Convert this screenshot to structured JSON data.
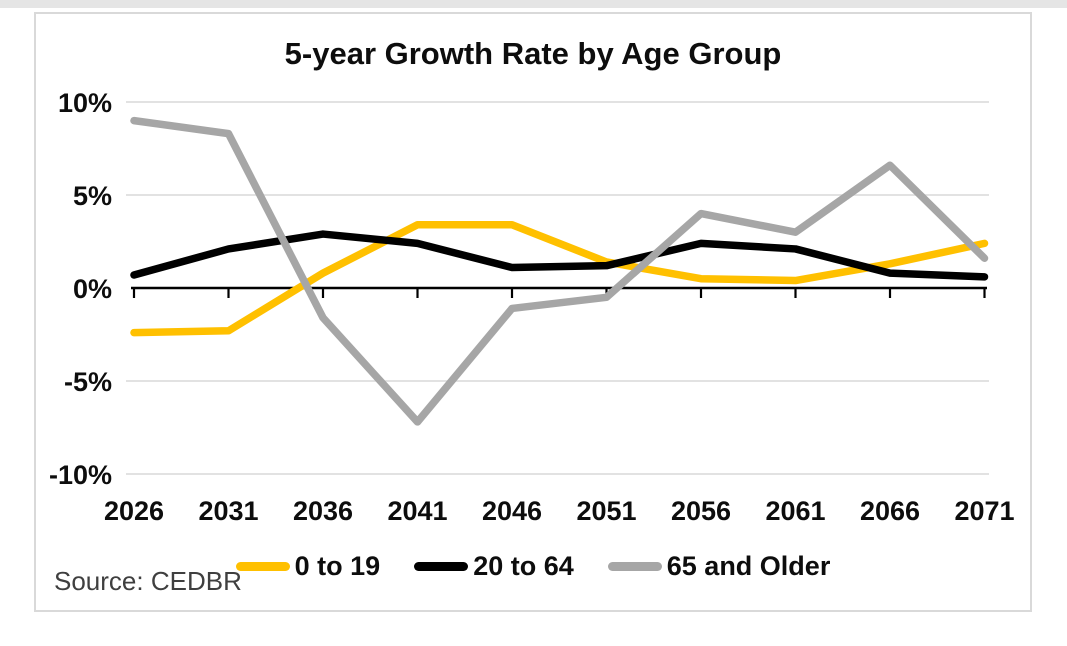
{
  "page": {
    "source_text": "Source: CEDBR"
  },
  "chart_data": {
    "type": "line",
    "title": "5-year Growth Rate by Age Group",
    "categories": [
      "2026",
      "2031",
      "2036",
      "2041",
      "2046",
      "2051",
      "2056",
      "2061",
      "2066",
      "2071"
    ],
    "series": [
      {
        "name": "0 to 19",
        "color": "#FFC000",
        "values": [
          -2.4,
          -2.3,
          0.8,
          3.4,
          3.4,
          1.4,
          0.5,
          0.4,
          1.3,
          2.4
        ]
      },
      {
        "name": "20 to 64",
        "color": "#000000",
        "values": [
          0.7,
          2.1,
          2.9,
          2.4,
          1.1,
          1.2,
          2.4,
          2.1,
          0.8,
          0.6
        ]
      },
      {
        "name": "65 and Older",
        "color": "#A6A6A6",
        "values": [
          9.0,
          8.3,
          -1.6,
          -7.2,
          -1.1,
          -0.5,
          4.0,
          3.0,
          6.6,
          1.6
        ]
      }
    ],
    "ylim": [
      -10,
      10
    ],
    "yticks": [
      {
        "value": 10,
        "label": "10%"
      },
      {
        "value": 5,
        "label": "5%"
      },
      {
        "value": 0,
        "label": "0%"
      },
      {
        "value": -5,
        "label": "-5%"
      },
      {
        "value": -10,
        "label": "-10%"
      }
    ],
    "unit": "%",
    "grid": "horizontal",
    "legend_position": "bottom",
    "source": "Source: CEDBR"
  },
  "colors": {
    "grid": "#D9D9D9",
    "axis": "#000000",
    "frame_border": "#D9D9D9",
    "top_strip": "#E5E5E5",
    "label_text": "#0D0D0D",
    "source_text": "#3F3F3F"
  }
}
